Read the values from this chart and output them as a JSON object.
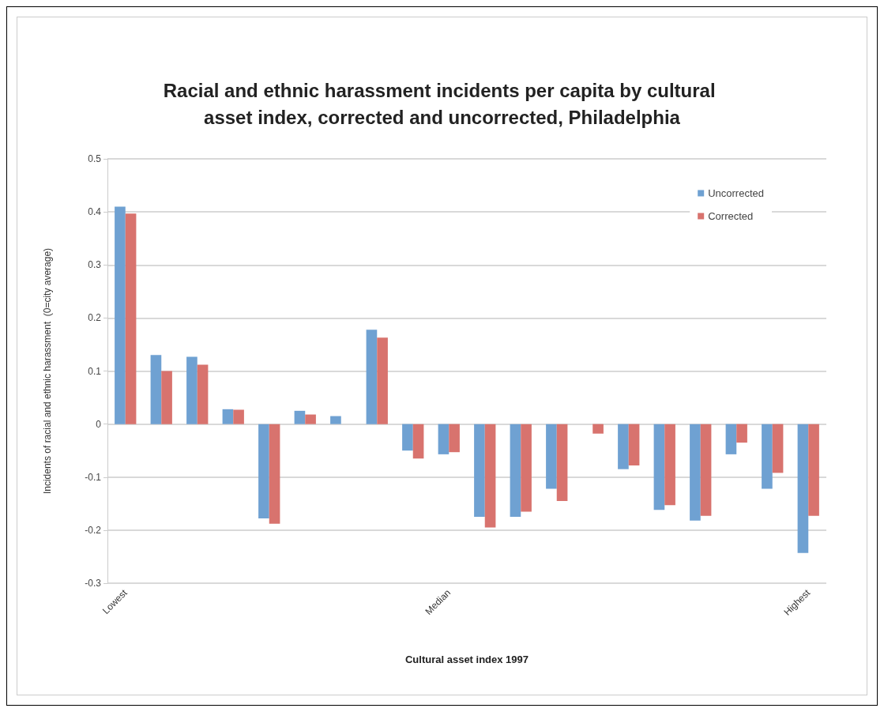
{
  "chart_data": {
    "type": "bar",
    "title": "Racial and ethnic harassment incidents per capita by cultural asset index, corrected and uncorrected, Philadelphia",
    "xlabel": "Cultural asset index 1997",
    "ylabel": "Incidents of racial and ethnic harassment  (0=city average)",
    "categories": [
      "Lowest",
      null,
      null,
      null,
      null,
      null,
      null,
      null,
      null,
      "Median",
      null,
      null,
      null,
      null,
      null,
      null,
      null,
      null,
      null,
      "Highest"
    ],
    "series": [
      {
        "name": "Uncorrected",
        "color": "#6fa1d2",
        "values": [
          0.41,
          0.13,
          0.127,
          0.028,
          -0.178,
          0.025,
          0.015,
          0.178,
          -0.05,
          -0.057,
          -0.175,
          -0.175,
          -0.122,
          0,
          -0.085,
          -0.162,
          -0.182,
          -0.057,
          -0.122,
          -0.243
        ]
      },
      {
        "name": "Corrected",
        "color": "#d8736e",
        "values": [
          0.397,
          0.1,
          0.112,
          0.027,
          -0.188,
          0.018,
          null,
          0.163,
          -0.065,
          -0.053,
          -0.195,
          -0.165,
          -0.145,
          -0.018,
          -0.078,
          -0.153,
          -0.173,
          -0.035,
          -0.092,
          -0.173
        ]
      }
    ],
    "ylim": [
      -0.3,
      0.5
    ],
    "yticks": [
      -0.3,
      -0.2,
      -0.1,
      0,
      0.1,
      0.2,
      0.3,
      0.4,
      0.5
    ],
    "grid": "y",
    "legend": "top right"
  }
}
